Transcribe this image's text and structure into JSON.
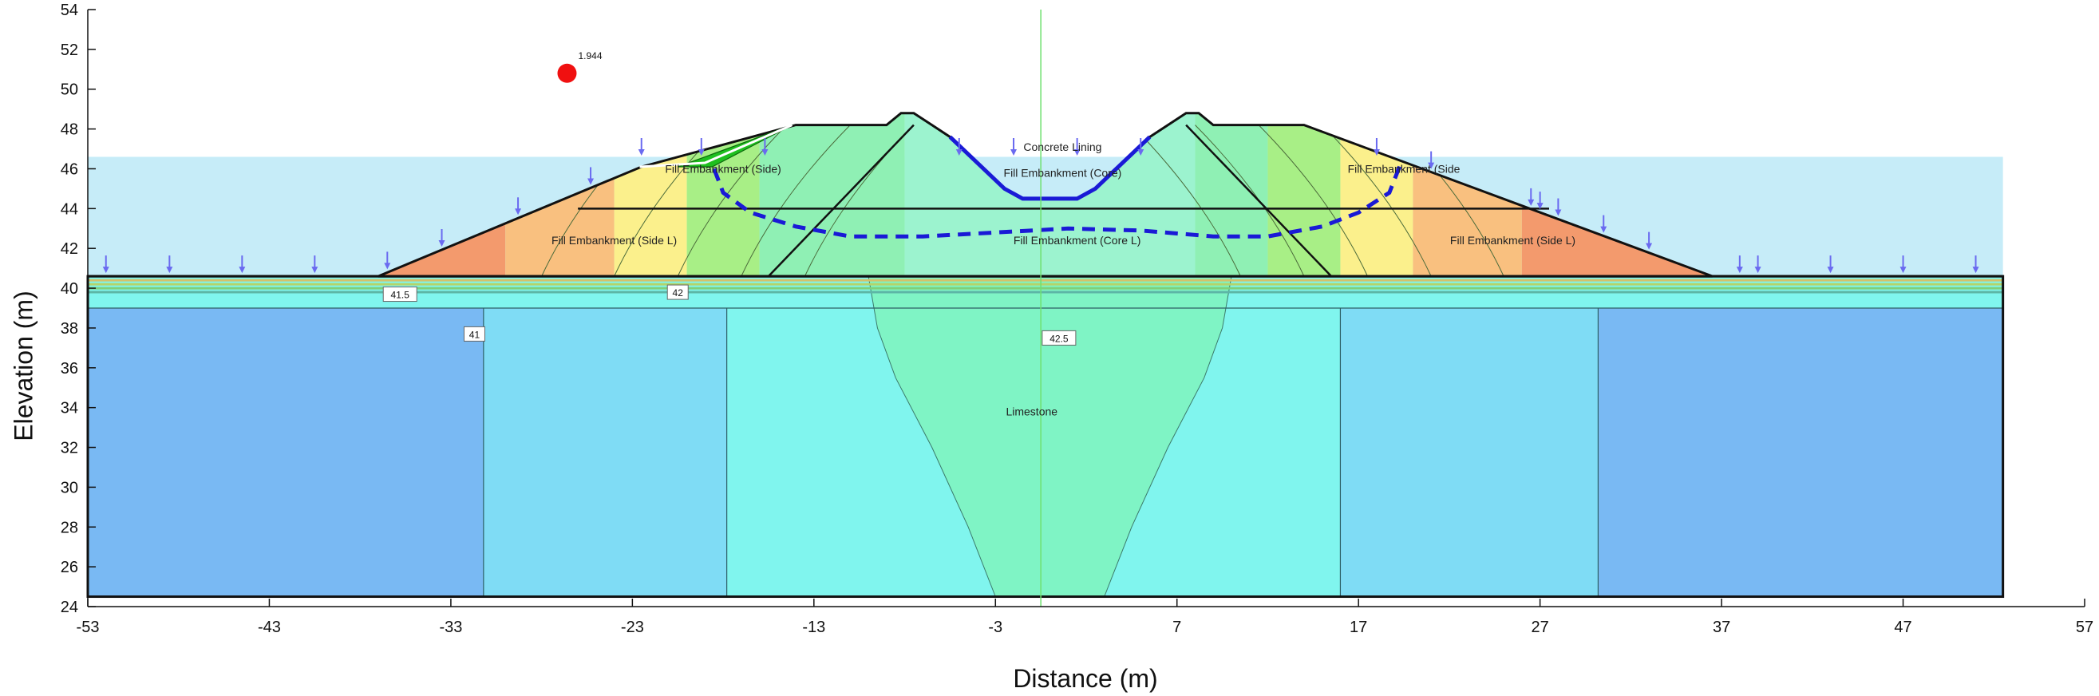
{
  "chart_data": {
    "type": "contour",
    "xlabel": "Distance (m)",
    "ylabel": "Elevation (m)",
    "xlim": [
      -53,
      57
    ],
    "ylim": [
      24,
      54
    ],
    "xticks": [
      -53,
      -43,
      -33,
      -23,
      -13,
      -3,
      7,
      17,
      27,
      37,
      47,
      57
    ],
    "yticks": [
      24,
      26,
      28,
      30,
      32,
      34,
      36,
      38,
      40,
      42,
      44,
      46,
      48,
      50,
      52,
      54
    ],
    "region_labels": [
      {
        "text": "Fill Embankment (Side)",
        "x": -18,
        "y": 45.8
      },
      {
        "text": "Concrete Lining",
        "x": 0.7,
        "y": 46.9
      },
      {
        "text": "Fill Embankment (Core)",
        "x": 0.7,
        "y": 45.6
      },
      {
        "text": "Fill Embankment (Side",
        "x": 19.5,
        "y": 45.8
      },
      {
        "text": "Fill Embankment (Side L)",
        "x": -24,
        "y": 42.2
      },
      {
        "text": "Fill Embankment (Core L)",
        "x": 1.5,
        "y": 42.2
      },
      {
        "text": "Fill Embankment (Side L)",
        "x": 25.5,
        "y": 42.2
      },
      {
        "text": "Limestone",
        "x": -1,
        "y": 33.6
      }
    ],
    "contour_labels": [
      {
        "text": "41.5",
        "x": -35.8,
        "y": 39.7
      },
      {
        "text": "42",
        "x": -20.5,
        "y": 39.8
      },
      {
        "text": "41",
        "x": -31.7,
        "y": 37.7
      },
      {
        "text": "42.5",
        "x": 0.5,
        "y": 37.5
      }
    ],
    "critical_point": {
      "label": "1.944",
      "x": -26.6,
      "y": 50.8
    },
    "colors": {
      "water": "#c6ecf8",
      "limestone_outer": "#79b9f3",
      "limestone_mid": "#7fdcf5",
      "limestone_inner": "#80f5ee",
      "limestone_core": "#7ff4c5",
      "embankment_warm": "#f39a6d",
      "embankment_orange": "#f9c07f",
      "embankment_yellow": "#fbf08c",
      "embankment_green": "#a8ef86",
      "slip_surface": "#1a1ad6",
      "critical_point": "#f01010",
      "load_arrow": "#6a6af0",
      "centerline": "#6fe06f"
    }
  }
}
